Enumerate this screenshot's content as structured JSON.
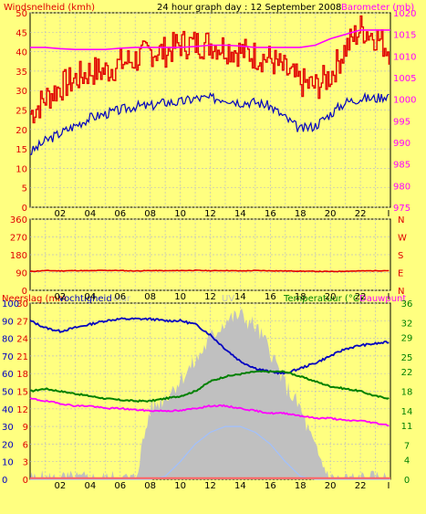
{
  "header": {
    "left_title": "Windsnelheid (kmh)",
    "center_title": "24 hour graph day : 12 September 2008",
    "right_title": "Barometer (mb)"
  },
  "colors": {
    "background": "#ffff80",
    "panel_border": "#000000",
    "grid": "#c0c0c0",
    "wind": "#e00000",
    "wind_avg": "#0000c0",
    "barometer": "#ff00ff",
    "wind_direction": "#e00000",
    "humidity": "#0000c0",
    "temperature": "#008000",
    "dewpoint": "#ff00ff",
    "uv": "#c0c0c0",
    "solar": "#a0c0ff",
    "rain": "#ff6060"
  },
  "x_ticks": [
    "02",
    "04",
    "06",
    "08",
    "10",
    "12",
    "14",
    "16",
    "18",
    "20",
    "22"
  ],
  "chart_data": [
    {
      "type": "line",
      "title": "24 hour graph day : 12 September 2008",
      "ylabel": "Windsnelheid (kmh)",
      "y2label": "Barometer (mb)",
      "ylim": [
        0,
        50
      ],
      "y2lim": [
        975,
        1020
      ],
      "y_ticks": [
        "0",
        "5",
        "10",
        "15",
        "20",
        "25",
        "30",
        "35",
        "40",
        "45",
        "50"
      ],
      "y2_ticks": [
        "975",
        "980",
        "985",
        "990",
        "995",
        "1000",
        "1005",
        "1010",
        "1015",
        "1020"
      ],
      "x_hours": [
        0,
        1,
        2,
        3,
        4,
        5,
        6,
        7,
        8,
        9,
        10,
        11,
        12,
        13,
        14,
        15,
        16,
        17,
        18,
        19,
        20,
        21,
        22,
        23,
        24
      ],
      "series": [
        {
          "name": "Windsnelheid",
          "color": "#e00000",
          "values": [
            24,
            28,
            31,
            33,
            35,
            35,
            37,
            38,
            40,
            40,
            42,
            42,
            42,
            41,
            40,
            39,
            38,
            35,
            32,
            31,
            34,
            41,
            46,
            44,
            40
          ]
        },
        {
          "name": "Windsnelheid gemiddeld",
          "color": "#0000c0",
          "values": [
            14,
            17,
            19,
            21,
            23,
            24,
            25,
            26,
            26,
            27,
            27,
            28,
            28,
            28,
            27,
            27,
            26,
            23,
            20,
            21,
            24,
            27,
            28,
            28,
            29
          ]
        },
        {
          "name": "Barometer",
          "color": "#ff00ff",
          "axis": "y2",
          "values": [
            1012,
            1012,
            1011.7,
            1011.5,
            1011.5,
            1011.5,
            1011.8,
            1012,
            1012,
            1012,
            1012,
            1012.2,
            1012.5,
            1012.5,
            1012.3,
            1012,
            1012,
            1012,
            1012,
            1012.5,
            1014,
            1015,
            1016,
            1016,
            1016
          ]
        }
      ]
    },
    {
      "type": "line",
      "ylim": [
        0,
        360
      ],
      "y_ticks": [
        "360",
        "270",
        "180",
        "90",
        "0"
      ],
      "y2_ticks": [
        "N",
        "W",
        "S",
        "E",
        "N"
      ],
      "series": [
        {
          "name": "Windrichting",
          "color": "#e00000",
          "values": [
            95,
            100,
            98,
            100,
            99,
            101,
            100,
            98,
            100,
            99,
            100,
            101,
            99,
            100,
            98,
            100,
            99,
            98,
            97,
            96,
            95,
            97,
            98,
            99,
            100
          ]
        }
      ]
    },
    {
      "type": "area",
      "legend": [
        "Neerslag (mm)",
        "Vochtigheid",
        "Solar",
        "UV",
        "Temperatuur (°C)",
        "Dauwpunt"
      ],
      "ylim": [
        0,
        30
      ],
      "y_ticks_rain": [
        "0",
        "3",
        "6",
        "9",
        "12",
        "15",
        "18",
        "21",
        "24",
        "27",
        "30"
      ],
      "y_ticks_humidity": [
        "0",
        "10",
        "20",
        "30",
        "40",
        "50",
        "60",
        "70",
        "80",
        "90",
        "100"
      ],
      "y2lim": [
        0,
        36
      ],
      "y2_ticks": [
        "0",
        "4",
        "7",
        "11",
        "14",
        "18",
        "22",
        "25",
        "29",
        "32",
        "36"
      ],
      "series": [
        {
          "name": "Vochtigheid",
          "color": "#0000c0",
          "axis": "humidity",
          "values": [
            90,
            86,
            84,
            86,
            88,
            90,
            91,
            91,
            91,
            90,
            90,
            88,
            82,
            74,
            67,
            63,
            61,
            60,
            63,
            66,
            70,
            74,
            76,
            77,
            78
          ]
        },
        {
          "name": "Temperatuur",
          "color": "#008000",
          "axis": "y2",
          "values": [
            18,
            18.5,
            18,
            17.5,
            17,
            16.5,
            16.2,
            16,
            16,
            16.5,
            17,
            18,
            20,
            21,
            21.5,
            22,
            22,
            22,
            21,
            20,
            19,
            18.5,
            18,
            17,
            16.5
          ]
        },
        {
          "name": "Dauwpunt",
          "color": "#ff00ff",
          "axis": "y2",
          "values": [
            16.5,
            16,
            15.5,
            15,
            15,
            14.5,
            14.5,
            14.2,
            14,
            14,
            14,
            14.5,
            15,
            15,
            14.5,
            14,
            13.5,
            13.5,
            13,
            12.5,
            12.5,
            12,
            12,
            11.5,
            11
          ]
        },
        {
          "name": "UV",
          "color": "#c0c0c0",
          "axis": "rain",
          "values": [
            0,
            0,
            0,
            0,
            0,
            0,
            0,
            0,
            12,
            14,
            17,
            20,
            24,
            27,
            28,
            26,
            22,
            16,
            12,
            5,
            0,
            0,
            0,
            0,
            0
          ]
        },
        {
          "name": "Solar",
          "color": "#a0c0ff",
          "axis": "rain",
          "values": [
            0,
            0,
            0,
            0,
            0,
            0,
            0,
            0,
            0,
            0.5,
            3,
            6,
            8,
            9,
            9,
            8,
            6,
            3,
            0.5,
            0,
            0,
            0,
            0,
            0,
            0
          ]
        },
        {
          "name": "Neerslag",
          "color": "#ff6060",
          "axis": "rain",
          "values": [
            0.2,
            0.2,
            0.2,
            0.2,
            0.2,
            0.2,
            0.2,
            0.2,
            0.2,
            0.2,
            0.2,
            0.2,
            0.2,
            0.2,
            0.2,
            0.2,
            0.2,
            0.2,
            0.2,
            0.2,
            0.2,
            0.2,
            0.2,
            0.2,
            0.2
          ]
        }
      ]
    }
  ],
  "panel3_labels": {
    "rain": "Neerslag (mm",
    "humidity": "Vochtigheid",
    "solar": "olar",
    "uv": "UV",
    "temperature": "Temperatuur (°C)",
    "dewpoint": "Dauwpunt"
  }
}
